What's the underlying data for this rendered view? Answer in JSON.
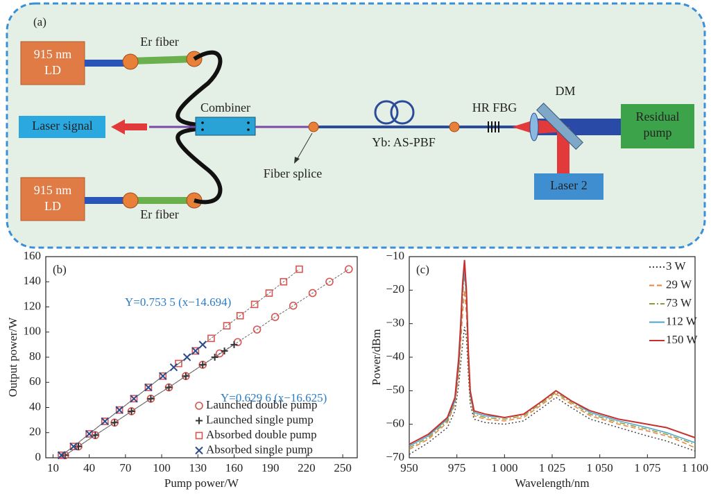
{
  "diagram": {
    "panel_label": "(a)",
    "ld_top": [
      "915 nm",
      "LD"
    ],
    "ld_bottom": [
      "915 nm",
      "LD"
    ],
    "er_fiber_top": "Er fiber",
    "er_fiber_bottom": "Er fiber",
    "combiner": "Combiner",
    "laser_signal": "Laser signal",
    "fiber_splice": "Fiber splice",
    "gain_fiber": "Yb: AS-PBF",
    "hr_fbg": "HR FBG",
    "dm": "DM",
    "residual_pump": [
      "Residual",
      "pump"
    ],
    "laser_2": "Laser 2"
  },
  "chart_data": [
    {
      "type": "scatter",
      "panel_label": "(b)",
      "x_label": "Pump power/W",
      "y_label": "Output power/W",
      "xlim": [
        4,
        262
      ],
      "xticks": [
        10,
        40,
        70,
        100,
        130,
        160,
        190,
        220,
        250
      ],
      "ylim": [
        0,
        160
      ],
      "yticks": [
        0,
        20,
        40,
        60,
        80,
        100,
        120,
        140,
        160
      ],
      "legend": "lower right",
      "annotations": [
        {
          "text": "Y=0.753 5 (x−14.694)",
          "color": "#2b7bc4"
        },
        {
          "text": "Y=0.629 6 (x−16.625)",
          "color": "#2b7bc4"
        }
      ],
      "series": [
        {
          "name": "Launched double pump",
          "color": "#d9534f",
          "marker": "circle",
          "x": [
            20,
            31,
            45,
            61,
            75,
            91,
            106,
            120,
            134,
            148,
            163,
            179,
            194,
            209,
            225,
            239,
            255
          ],
          "values": [
            2,
            9,
            18,
            28,
            37,
            47,
            56,
            65,
            74,
            83,
            92,
            102,
            112,
            121,
            131,
            140,
            150
          ]
        },
        {
          "name": "Launched single pump",
          "color": "#333333",
          "marker": "plus",
          "x": [
            20,
            31,
            45,
            61,
            75,
            91,
            106,
            120,
            134,
            144,
            152,
            160
          ],
          "values": [
            2,
            9,
            18,
            28,
            37,
            47,
            56,
            65,
            74,
            80,
            85,
            90
          ]
        },
        {
          "name": "Absorbed double pump",
          "color": "#d9534f",
          "marker": "square",
          "x": [
            17,
            27,
            40,
            53,
            65,
            77,
            89,
            101,
            114,
            128,
            141,
            154,
            165,
            177,
            189,
            201,
            214
          ],
          "values": [
            2,
            9,
            19,
            29,
            38,
            47,
            56,
            65,
            75,
            85,
            95,
            105,
            113,
            122,
            131,
            140,
            150
          ]
        },
        {
          "name": "Absorbed single pump",
          "color": "#2c4a8c",
          "marker": "x",
          "x": [
            17,
            27,
            40,
            53,
            65,
            77,
            89,
            101,
            110,
            121,
            128,
            134
          ],
          "values": [
            2,
            9,
            19,
            29,
            38,
            47,
            56,
            65,
            72,
            80,
            85,
            90
          ]
        }
      ]
    },
    {
      "type": "line",
      "panel_label": "(c)",
      "x_label": "Wavelength/nm",
      "y_label": "Power/dBm",
      "xlim": [
        950,
        1100
      ],
      "xticks": [
        950,
        975,
        {
          "value": 1000,
          "label": "1 000"
        },
        {
          "value": 1025,
          "label": "1 025"
        },
        {
          "value": 1050,
          "label": "1 050"
        },
        {
          "value": 1075,
          "label": "1 075"
        },
        {
          "value": 1100,
          "label": "1 100"
        }
      ],
      "ylim": [
        -70,
        -10
      ],
      "yticks": [
        {
          "value": -70,
          "label": "−70"
        },
        {
          "value": -60,
          "label": "−60"
        },
        {
          "value": -50,
          "label": "−50"
        },
        {
          "value": -40,
          "label": "−40"
        },
        {
          "value": -30,
          "label": "−30"
        },
        {
          "value": -20,
          "label": "−20"
        },
        {
          "value": -10,
          "label": "−10"
        }
      ],
      "legend": "upper right",
      "x": [
        950,
        960,
        970,
        974,
        976,
        977,
        978,
        979,
        980,
        981,
        982,
        984,
        990,
        1000,
        1010,
        1020,
        1027,
        1035,
        1045,
        1060,
        1075,
        1085,
        1090,
        1100
      ],
      "series": [
        {
          "name": "3 W",
          "color": "#444444",
          "line_style": "dotted",
          "values": [
            -69,
            -65.5,
            -61,
            -56,
            -48,
            -42,
            -36,
            -31,
            -34,
            -45,
            -54,
            -58.5,
            -59.5,
            -60,
            -59,
            -55,
            -52,
            -55,
            -58.5,
            -61,
            -63.5,
            -65,
            -66,
            -68
          ]
        },
        {
          "name": "29 W",
          "color": "#e8833a",
          "line_style": "dashed",
          "values": [
            -67.5,
            -64.5,
            -59.5,
            -54,
            -45,
            -36,
            -27,
            -20,
            -27,
            -42,
            -52,
            -57.5,
            -58.5,
            -59,
            -58,
            -54,
            -51,
            -54,
            -57.5,
            -60,
            -62,
            -63.5,
            -64.5,
            -67
          ]
        },
        {
          "name": "73 W",
          "color": "#8a9a3a",
          "line_style": "dashdot",
          "values": [
            -67,
            -64,
            -59,
            -53.5,
            -43,
            -33,
            -22,
            -15,
            -23,
            -40,
            -51.5,
            -57,
            -58,
            -58.5,
            -57.5,
            -53.5,
            -50.5,
            -53.5,
            -57,
            -59.5,
            -61.5,
            -63,
            -64,
            -66
          ]
        },
        {
          "name": "112 W",
          "color": "#4aa3c8",
          "line_style": "solid",
          "values": [
            -66.5,
            -63.5,
            -58.5,
            -53,
            -42,
            -32,
            -20,
            -14,
            -22,
            -39,
            -51,
            -56.5,
            -57.5,
            -58,
            -57,
            -53,
            -50,
            -53,
            -56.5,
            -59,
            -61,
            -62.5,
            -63.5,
            -65.5
          ]
        },
        {
          "name": "150 W",
          "color": "#c8302e",
          "line_style": "solid",
          "values": [
            -66,
            -63,
            -58,
            -52,
            -40,
            -30,
            -18,
            -11,
            -20,
            -38,
            -50,
            -56,
            -57,
            -58,
            -57,
            -53,
            -50,
            -53,
            -56,
            -58.5,
            -60,
            -61,
            -62,
            -64
          ]
        }
      ]
    }
  ]
}
